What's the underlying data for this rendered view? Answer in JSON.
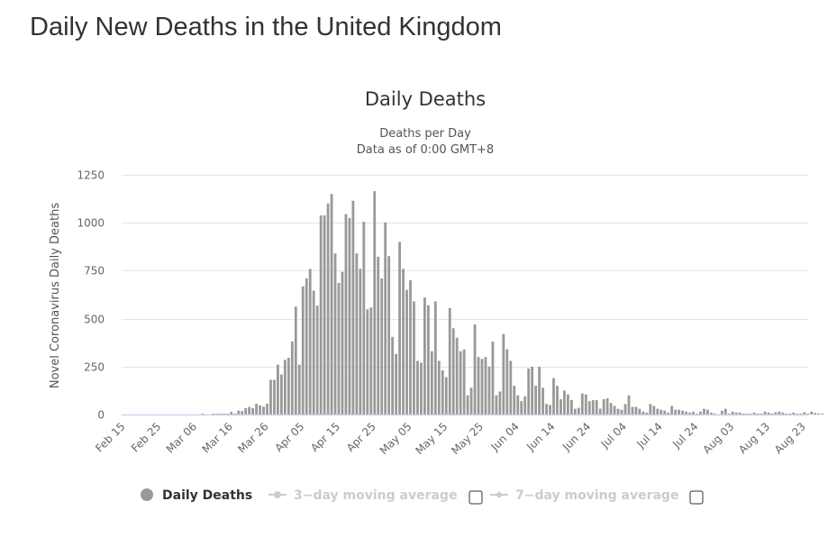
{
  "page": {
    "title": "Daily New Deaths in the United Kingdom"
  },
  "chart_data": {
    "type": "bar",
    "title": "Daily Deaths",
    "subtitle_lines": [
      "Deaths per Day",
      "Data as of 0:00 GMT+8"
    ],
    "ylabel": "Novel Coronavirus Daily Deaths",
    "xlabel": "",
    "ylim": [
      0,
      1250
    ],
    "y_ticks": [
      0,
      250,
      500,
      750,
      1000,
      1250
    ],
    "grid": true,
    "start_date": "Feb 15",
    "x_tick_labels": [
      "Feb 15",
      "Feb 25",
      "Mar 06",
      "Mar 16",
      "Mar 26",
      "Apr 05",
      "Apr 15",
      "Apr 25",
      "May 05",
      "May 15",
      "May 25",
      "Jun 04",
      "Jun 14",
      "Jun 24",
      "Jul 04",
      "Jul 14",
      "Jul 24",
      "Aug 03",
      "Aug 13",
      "Aug 23"
    ],
    "x_tick_interval_days": 10,
    "series": [
      {
        "name": "Daily Deaths",
        "color": "#999999",
        "values": [
          0,
          0,
          0,
          0,
          0,
          0,
          0,
          0,
          0,
          0,
          0,
          0,
          0,
          0,
          0,
          0,
          0,
          0,
          0,
          0,
          0,
          0,
          1,
          0,
          0,
          2,
          1,
          1,
          2,
          1,
          14,
          5,
          20,
          18,
          33,
          40,
          33,
          56,
          48,
          41,
          56,
          181,
          181,
          260,
          209,
          285,
          296,
          381,
          563,
          260,
          668,
          710,
          760,
          646,
          568,
          1038,
          1038,
          1100,
          1150,
          840,
          686,
          744,
          1045,
          1024,
          1115,
          840,
          760,
          1005,
          548,
          558,
          1165,
          823,
          710,
          1002,
          826,
          405,
          316,
          900,
          760,
          650,
          700,
          590,
          280,
          270,
          610,
          570,
          330,
          590,
          280,
          230,
          195,
          555,
          450,
          400,
          330,
          340,
          100,
          140,
          470,
          300,
          290,
          300,
          250,
          380,
          100,
          120,
          420,
          340,
          280,
          150,
          100,
          70,
          95,
          240,
          250,
          150,
          250,
          140,
          55,
          50,
          190,
          150,
          80,
          125,
          105,
          75,
          30,
          35,
          110,
          105,
          70,
          75,
          75,
          30,
          80,
          85,
          60,
          45,
          30,
          25,
          55,
          100,
          40,
          40,
          30,
          15,
          10,
          55,
          45,
          30,
          25,
          20,
          10,
          45,
          25,
          25,
          20,
          15,
          10,
          15,
          5,
          15,
          30,
          25,
          10,
          5,
          0,
          20,
          30,
          5,
          15,
          10,
          10,
          5,
          3,
          5,
          10,
          5,
          5,
          15,
          10,
          5,
          12,
          15,
          10,
          5,
          2,
          10,
          5,
          5,
          12,
          3,
          15,
          8,
          5,
          2,
          0,
          10,
          5,
          15,
          8,
          2
        ]
      },
      {
        "name": "3-day moving average",
        "visible": false,
        "color": "#cccccc"
      },
      {
        "name": "7-day moving average",
        "visible": false,
        "color": "#cccccc"
      }
    ],
    "legend": {
      "position": "bottom-center",
      "items": [
        {
          "label": "Daily Deaths",
          "active": true,
          "has_checkbox": false
        },
        {
          "label": "3−day moving average",
          "active": false,
          "has_checkbox": true,
          "checked": false
        },
        {
          "label": "7−day moving average",
          "active": false,
          "has_checkbox": true,
          "checked": false
        }
      ]
    }
  },
  "colors": {
    "bar": "#999999",
    "legend_active_text": "#333333",
    "legend_inactive_text": "#cccccc",
    "title_text": "#333333"
  }
}
